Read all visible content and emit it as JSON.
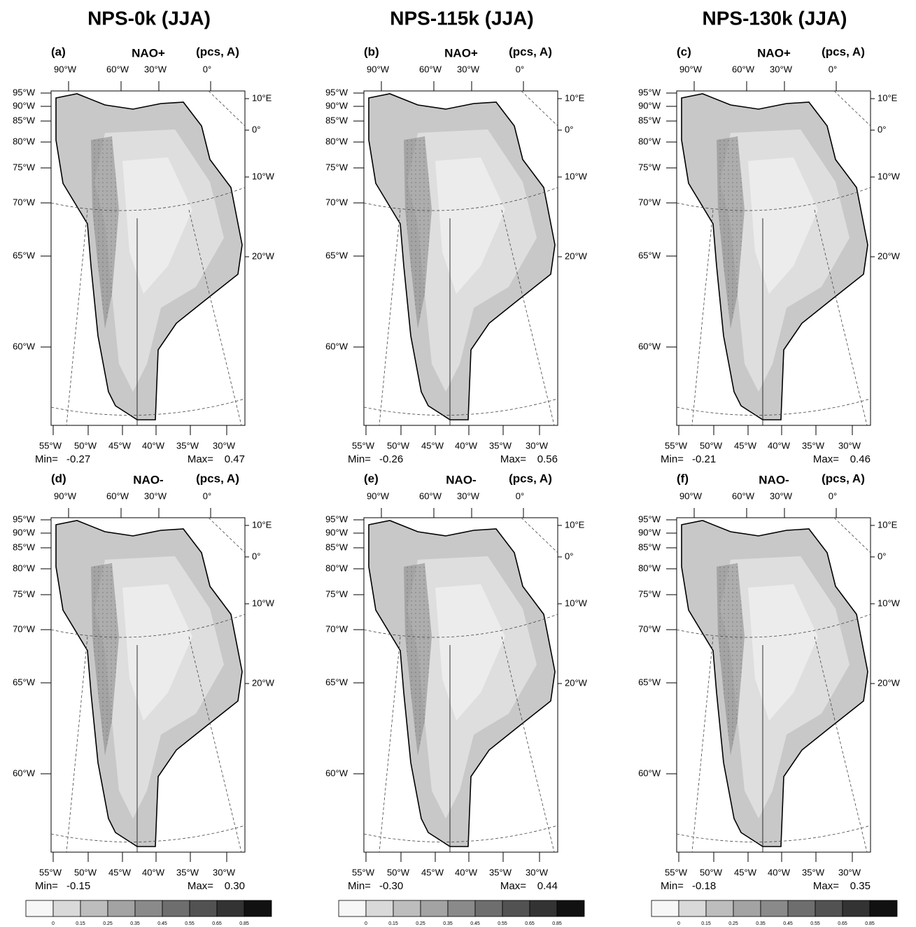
{
  "columns": [
    "NPS-0k (JJA)",
    "NPS-115k (JJA)",
    "NPS-130k (JJA)"
  ],
  "panels": [
    {
      "label": "(a)",
      "mode": "NAO+",
      "units": "(pcs, A)",
      "min": "-0.27",
      "max": "0.47"
    },
    {
      "label": "(b)",
      "mode": "NAO+",
      "units": "(pcs, A)",
      "min": "-0.26",
      "max": "0.56"
    },
    {
      "label": "(c)",
      "mode": "NAO+",
      "units": "(pcs, A)",
      "min": "-0.21",
      "max": "0.46"
    },
    {
      "label": "(d)",
      "mode": "NAO-",
      "units": "(pcs, A)",
      "min": "-0.15",
      "max": "0.30"
    },
    {
      "label": "(e)",
      "mode": "NAO-",
      "units": "(pcs, A)",
      "min": "-0.30",
      "max": "0.44"
    },
    {
      "label": "(f)",
      "mode": "NAO-",
      "units": "(pcs, A)",
      "min": "-0.18",
      "max": "0.35"
    }
  ],
  "min_label": "Min=",
  "max_label": "Max=",
  "graticule": {
    "top": [
      "90°W",
      "60°W",
      "30°W",
      "0°"
    ],
    "left": [
      "95°W",
      "90°W",
      "85°W",
      "80°W",
      "75°W",
      "70°W",
      "65°W",
      "60°W"
    ],
    "right": [
      "10°E",
      "0°",
      "10°W",
      "20°W"
    ],
    "bottom": [
      "55°W",
      "50°W",
      "45°W",
      "40°W",
      "35°W",
      "30°W"
    ]
  },
  "colorbar": {
    "ticks": [
      0,
      0.15,
      0.25,
      0.35,
      0.45,
      0.55,
      0.65,
      0.85
    ],
    "colors": [
      "#f7f7f7",
      "#d9d9d9",
      "#bdbdbd",
      "#a3a3a3",
      "#8a8a8a",
      "#6e6e6e",
      "#525252",
      "#333333",
      "#111111"
    ]
  }
}
